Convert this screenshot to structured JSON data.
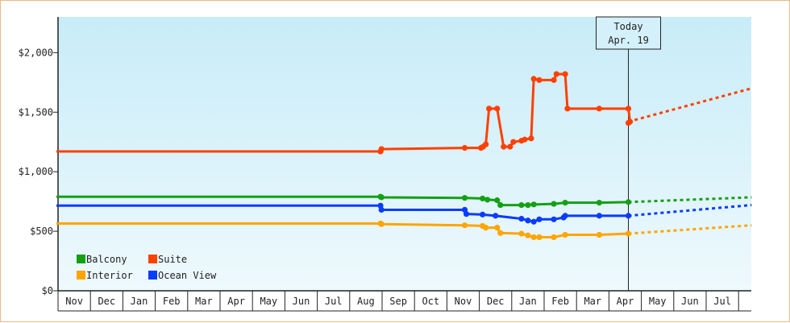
{
  "chart_data": {
    "type": "line",
    "ylim": [
      0,
      2300
    ],
    "yticks": [
      {
        "value": 0,
        "label": "$0"
      },
      {
        "value": 500,
        "label": "$500"
      },
      {
        "value": 1000,
        "label": "$1,000"
      },
      {
        "value": 1500,
        "label": "$1,500"
      },
      {
        "value": 2000,
        "label": "$2,000"
      }
    ],
    "month_labels": [
      "Nov",
      "Dec",
      "Jan",
      "Feb",
      "Mar",
      "Apr",
      "May",
      "Jun",
      "Jul",
      "Aug",
      "Sep",
      "Oct",
      "Nov",
      "Dec",
      "Jan",
      "Feb",
      "Mar",
      "Apr",
      "May",
      "Jun",
      "Jul"
    ],
    "x_range_months": [
      0,
      21.4
    ],
    "today": {
      "line1": "Today",
      "line2": "Apr. 19",
      "x": 17.6
    },
    "grid": false,
    "background": {
      "top": "#c8ecf8",
      "bottom": "#eef9fd"
    },
    "legend": {
      "position": "bottom-left",
      "items": [
        {
          "label": "Balcony",
          "color": "#14a014"
        },
        {
          "label": "Suite",
          "color": "#ff4000"
        },
        {
          "label": "Interior",
          "color": "#ffa500"
        },
        {
          "label": "Ocean View",
          "color": "#0a3cff"
        }
      ]
    },
    "series": [
      {
        "name": "Suite",
        "color": "#ff4000",
        "points": [
          [
            -0.05,
            1170
          ],
          [
            9.95,
            1170
          ],
          [
            9.98,
            1190
          ],
          [
            12.55,
            1200
          ],
          [
            13.05,
            1200
          ],
          [
            13.12,
            1210
          ],
          [
            13.2,
            1230
          ],
          [
            13.3,
            1530
          ],
          [
            13.55,
            1530
          ],
          [
            13.75,
            1210
          ],
          [
            13.95,
            1210
          ],
          [
            14.05,
            1250
          ],
          [
            14.3,
            1260
          ],
          [
            14.4,
            1270
          ],
          [
            14.6,
            1280
          ],
          [
            14.68,
            1780
          ],
          [
            14.85,
            1770
          ],
          [
            15.3,
            1770
          ],
          [
            15.38,
            1820
          ],
          [
            15.65,
            1820
          ],
          [
            15.72,
            1530
          ],
          [
            16.7,
            1530
          ],
          [
            17.6,
            1530
          ],
          [
            17.65,
            1420
          ],
          [
            17.6,
            1410
          ]
        ],
        "forecast": [
          [
            17.6,
            1420
          ],
          [
            21.4,
            1700
          ]
        ]
      },
      {
        "name": "Balcony",
        "color": "#14a014",
        "points": [
          [
            -0.05,
            790
          ],
          [
            9.95,
            790
          ],
          [
            9.98,
            785
          ],
          [
            12.55,
            780
          ],
          [
            13.1,
            775
          ],
          [
            13.25,
            765
          ],
          [
            13.55,
            760
          ],
          [
            13.65,
            720
          ],
          [
            14.3,
            720
          ],
          [
            14.5,
            720
          ],
          [
            14.68,
            725
          ],
          [
            15.3,
            730
          ],
          [
            15.65,
            740
          ],
          [
            16.7,
            740
          ],
          [
            17.6,
            745
          ]
        ],
        "forecast": [
          [
            17.6,
            745
          ],
          [
            21.4,
            785
          ]
        ]
      },
      {
        "name": "Ocean View",
        "color": "#0a3cff",
        "points": [
          [
            -0.05,
            715
          ],
          [
            9.95,
            715
          ],
          [
            9.98,
            680
          ],
          [
            12.55,
            680
          ],
          [
            12.6,
            645
          ],
          [
            13.1,
            640
          ],
          [
            13.5,
            630
          ],
          [
            14.3,
            605
          ],
          [
            14.5,
            590
          ],
          [
            14.68,
            580
          ],
          [
            14.85,
            600
          ],
          [
            15.3,
            600
          ],
          [
            15.6,
            615
          ],
          [
            15.65,
            630
          ],
          [
            16.7,
            630
          ],
          [
            17.6,
            630
          ]
        ],
        "forecast": [
          [
            17.6,
            630
          ],
          [
            21.4,
            720
          ]
        ]
      },
      {
        "name": "Interior",
        "color": "#ffa500",
        "points": [
          [
            -0.05,
            565
          ],
          [
            9.95,
            565
          ],
          [
            9.98,
            560
          ],
          [
            12.55,
            550
          ],
          [
            13.1,
            545
          ],
          [
            13.2,
            530
          ],
          [
            13.55,
            530
          ],
          [
            13.65,
            485
          ],
          [
            14.3,
            480
          ],
          [
            14.5,
            465
          ],
          [
            14.68,
            450
          ],
          [
            14.85,
            450
          ],
          [
            15.3,
            450
          ],
          [
            15.65,
            470
          ],
          [
            16.7,
            470
          ],
          [
            17.6,
            480
          ]
        ],
        "forecast": [
          [
            17.6,
            480
          ],
          [
            21.4,
            550
          ]
        ]
      }
    ]
  }
}
